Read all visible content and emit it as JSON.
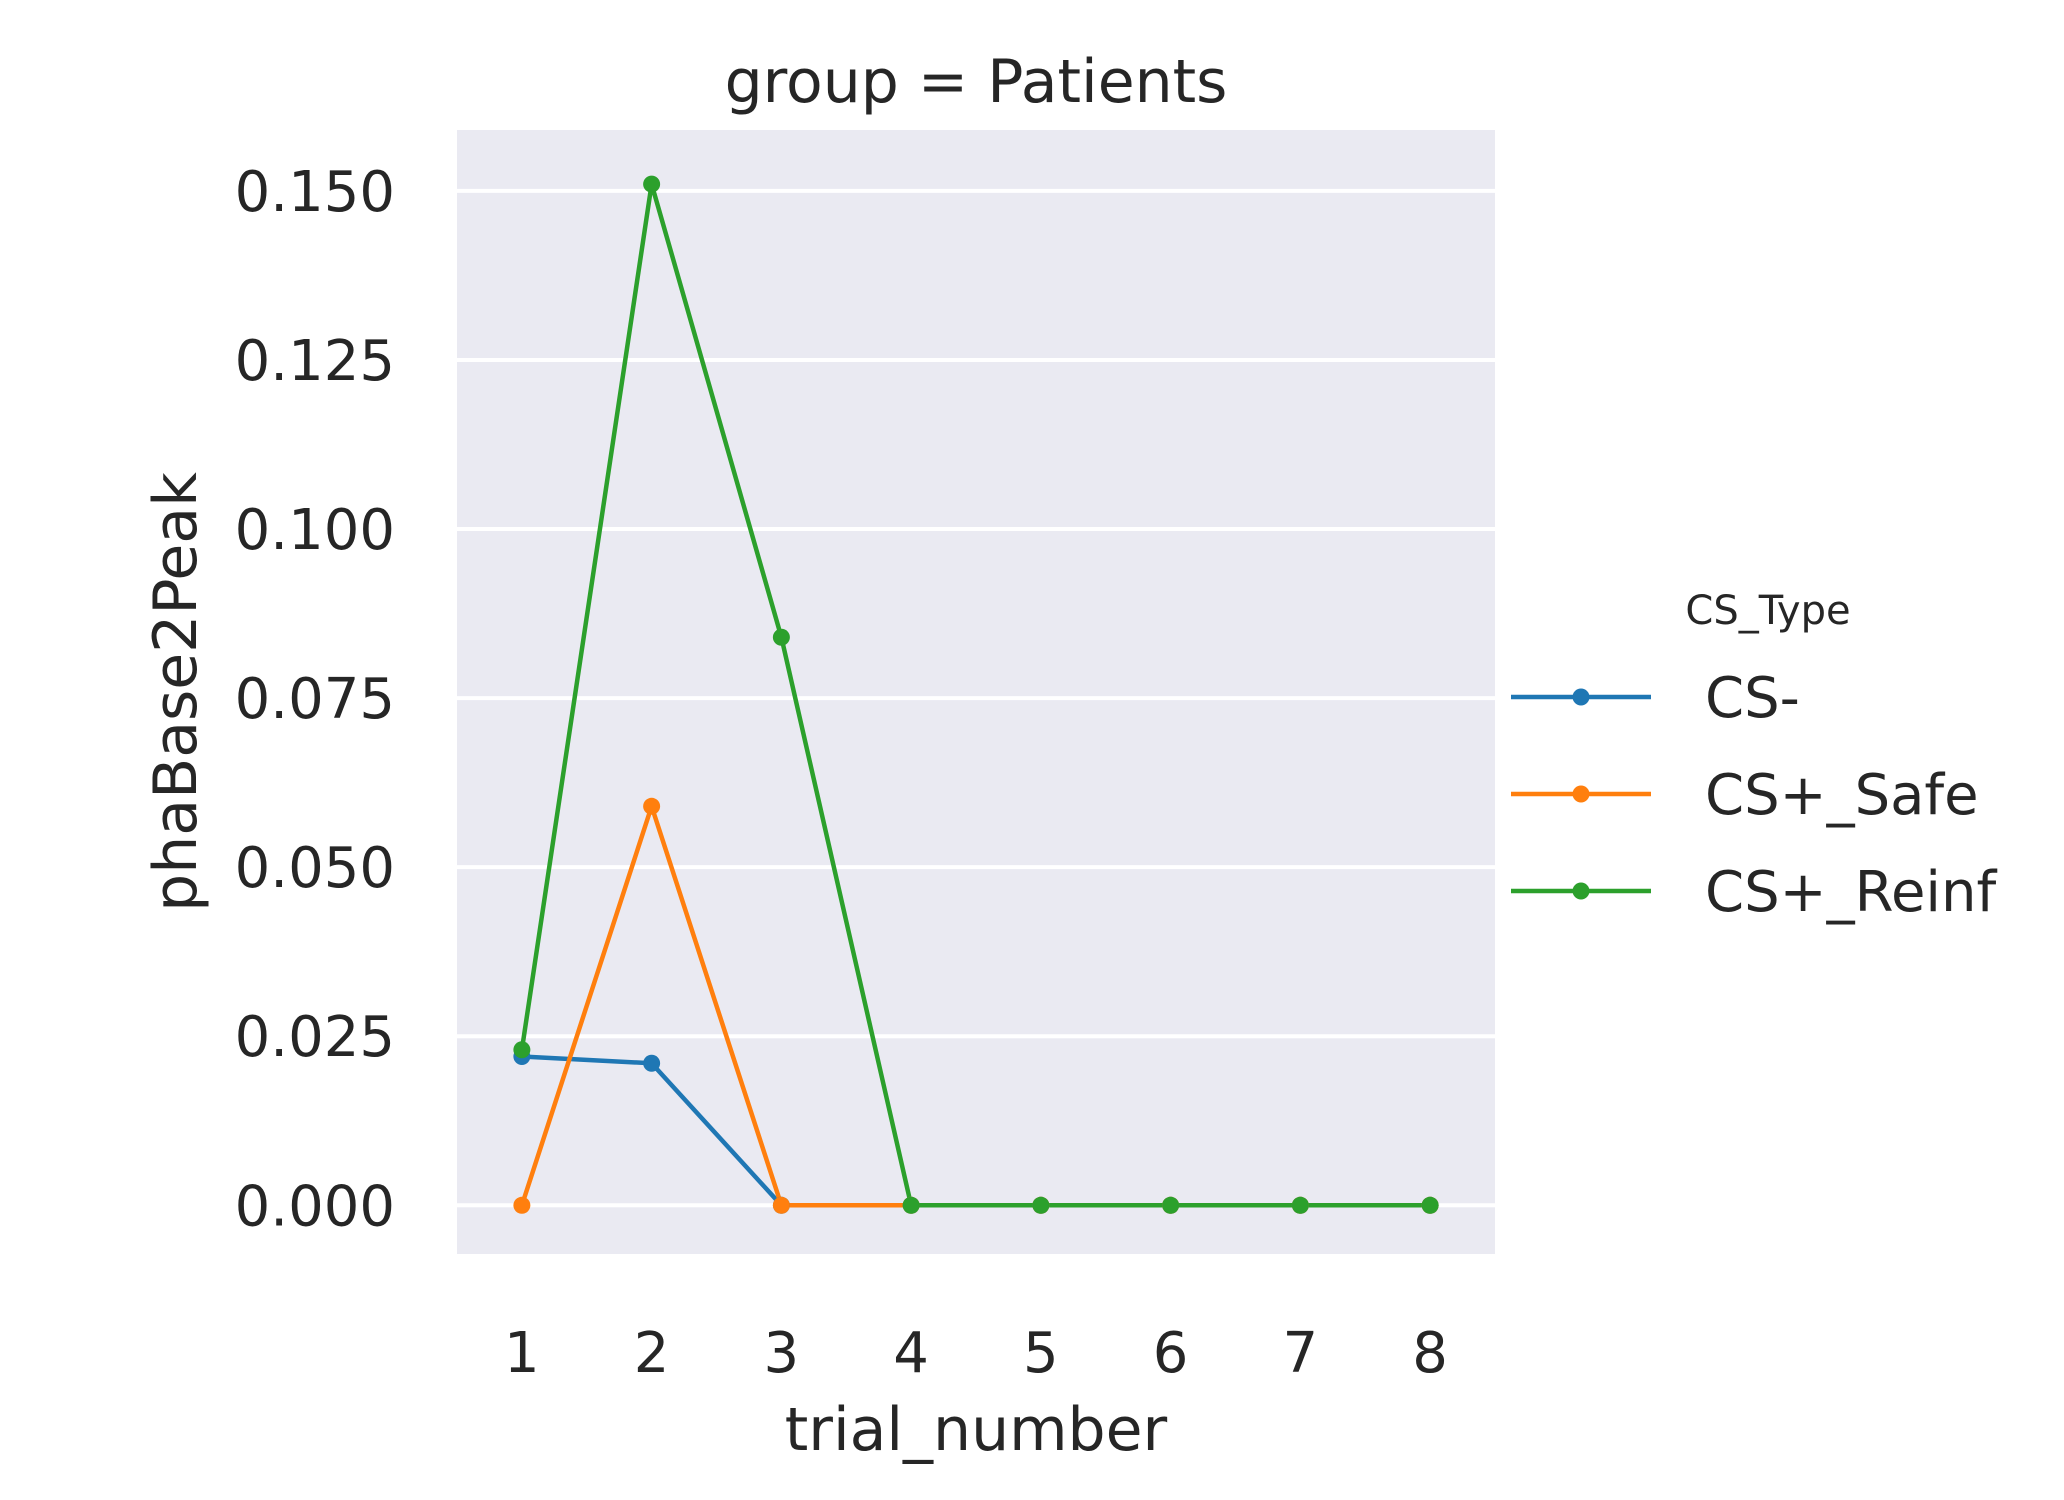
{
  "chart_data": {
    "type": "line",
    "title": "group = Patients",
    "xlabel": "trial_number",
    "ylabel": "phaBase2Peak",
    "x": [
      1,
      2,
      3,
      4,
      5,
      6,
      7,
      8
    ],
    "x_tick_labels": [
      "1",
      "2",
      "3",
      "4",
      "5",
      "6",
      "7",
      "8"
    ],
    "y_ticks": [
      0.0,
      0.025,
      0.05,
      0.075,
      0.1,
      0.125,
      0.15
    ],
    "y_tick_labels": [
      "0.000",
      "0.025",
      "0.050",
      "0.075",
      "0.100",
      "0.125",
      "0.150"
    ],
    "ylim": [
      -0.0072,
      0.159
    ],
    "grid": true,
    "legend": {
      "title": "CS_Type",
      "position": "right"
    },
    "series": [
      {
        "name": "CS-",
        "color": "#1f77b4",
        "values": [
          0.022,
          0.021,
          0.0,
          0.0,
          0.0,
          0.0,
          0.0,
          0.0
        ]
      },
      {
        "name": "CS+_Safe",
        "color": "#ff7f0e",
        "values": [
          0.0,
          0.059,
          0.0,
          0.0,
          0.0,
          0.0,
          0.0,
          0.0
        ]
      },
      {
        "name": "CS+_Reinf",
        "color": "#2ca02c",
        "values": [
          0.023,
          0.151,
          0.084,
          0.0,
          0.0,
          0.0,
          0.0,
          0.0
        ]
      }
    ]
  }
}
